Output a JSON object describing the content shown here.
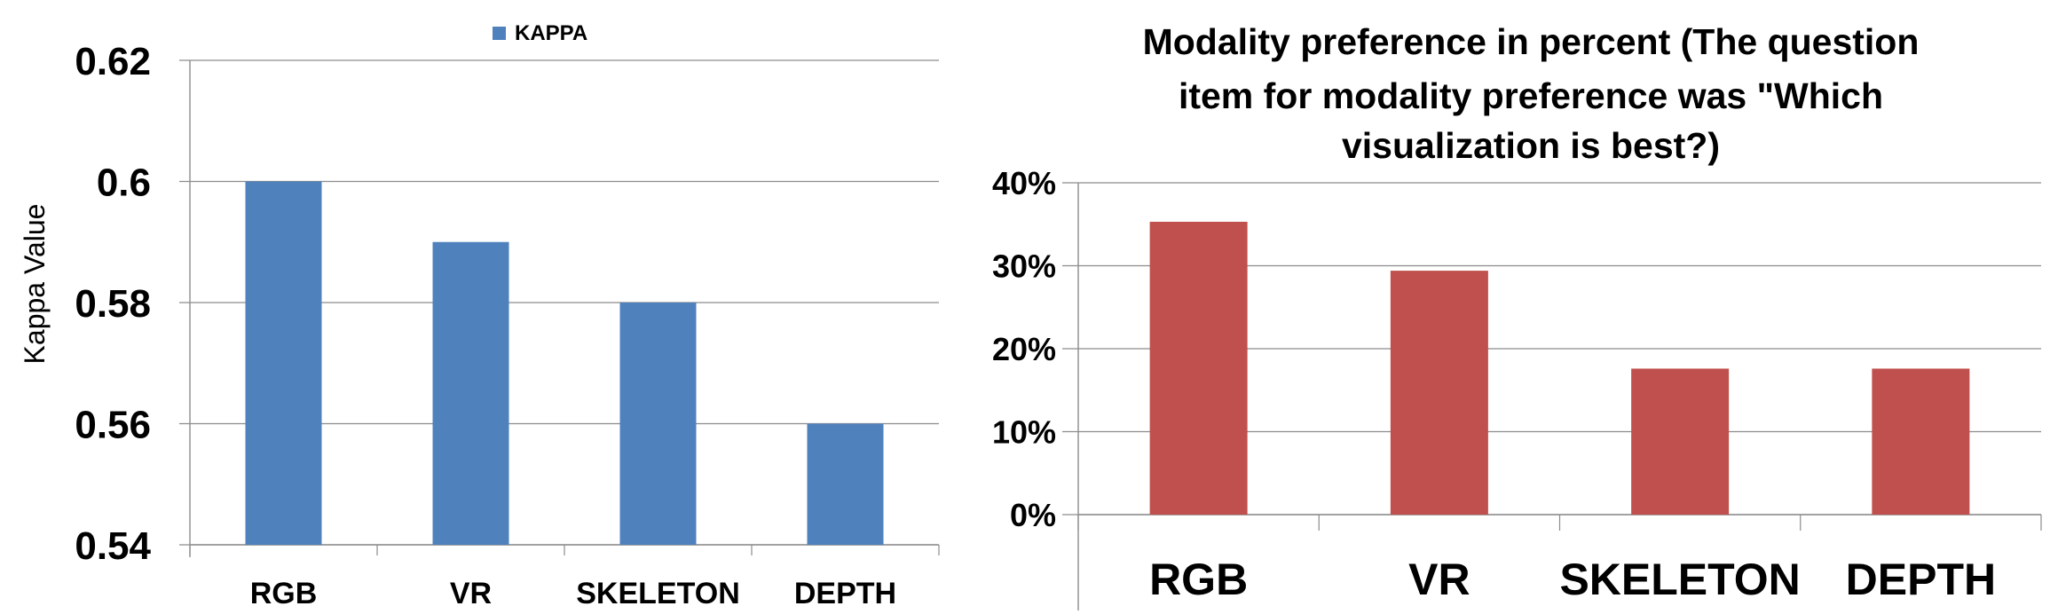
{
  "chart_data": [
    {
      "type": "bar",
      "title": "",
      "xlabel": "",
      "ylabel": "Kappa Value",
      "categories": [
        "RGB",
        "VR",
        "SKELETON",
        "DEPTH"
      ],
      "series": [
        {
          "name": "KAPPA",
          "values": [
            0.6,
            0.59,
            0.58,
            0.56
          ]
        }
      ],
      "ylim": [
        0.54,
        0.62
      ],
      "yticks": [
        "0.54",
        "0.56",
        "0.58",
        "0.6",
        "0.62"
      ],
      "legend_position": "top",
      "grid": true,
      "color": "#4f81bd"
    },
    {
      "type": "bar",
      "title": "Modality preference in percent (The question item for modality preference was \"Which visualization is best?)",
      "title_lines": [
        "Modality preference in percent (The question",
        "item for modality preference was \"Which",
        "visualization is best?)"
      ],
      "xlabel": "",
      "ylabel": "",
      "categories": [
        "RGB",
        "VR",
        "SKELETON",
        "DEPTH"
      ],
      "series": [
        {
          "values": [
            35.3,
            29.4,
            17.6,
            17.6
          ]
        }
      ],
      "ylim": [
        0,
        40
      ],
      "yticks": [
        "0%",
        "10%",
        "20%",
        "30%",
        "40%"
      ],
      "grid": true,
      "color": "#c0504d"
    }
  ]
}
